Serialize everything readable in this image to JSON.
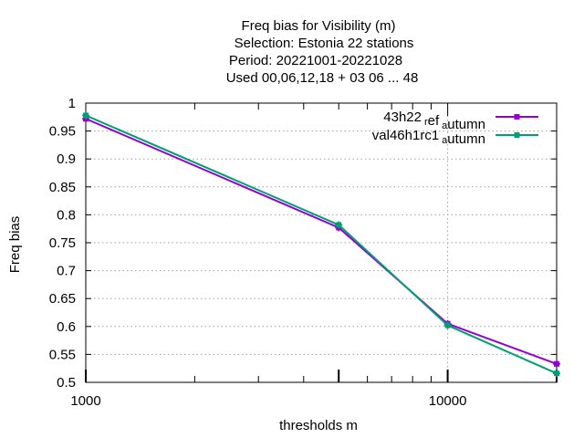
{
  "title_lines": [
    "Freq bias  for Visibility (m)",
    "Selection: Estonia      22 stations",
    "Period: 20221001-20221028",
    "Used  00,06,12,18  + 03 06 ... 48"
  ],
  "chart_data": {
    "type": "line",
    "xlabel": "thresholds m",
    "ylabel": "Freq bias",
    "xscale": "log",
    "xlim": [
      1000,
      20000
    ],
    "ylim": [
      0.5,
      1.0
    ],
    "xticks": [
      {
        "value": 1000,
        "label": "1000"
      },
      {
        "value": 10000,
        "label": "10000"
      }
    ],
    "yticks": [
      {
        "value": 0.5,
        "label": "0.5"
      },
      {
        "value": 0.55,
        "label": "0.55"
      },
      {
        "value": 0.6,
        "label": "0.6"
      },
      {
        "value": 0.65,
        "label": "0.65"
      },
      {
        "value": 0.7,
        "label": "0.7"
      },
      {
        "value": 0.75,
        "label": "0.75"
      },
      {
        "value": 0.8,
        "label": "0.8"
      },
      {
        "value": 0.85,
        "label": "0.85"
      },
      {
        "value": 0.9,
        "label": "0.9"
      },
      {
        "value": 0.95,
        "label": "0.95"
      },
      {
        "value": 1.0,
        "label": "1"
      }
    ],
    "x": [
      1000,
      5000,
      10000,
      20000
    ],
    "grid": true,
    "legend_position": "top-right",
    "series": [
      {
        "name": "43h22",
        "name_sub1": "r",
        "name_mid": "ef",
        "name_sub2": "a",
        "name_tail": "utumn",
        "color": "#9400d3",
        "values": [
          0.972,
          0.777,
          0.605,
          0.533
        ]
      },
      {
        "name": "val46h1rc1",
        "name_sub1": "a",
        "name_mid": "",
        "name_sub2": "",
        "name_tail": "utumn",
        "color": "#009e73",
        "values": [
          0.978,
          0.782,
          0.602,
          0.516
        ]
      }
    ]
  }
}
